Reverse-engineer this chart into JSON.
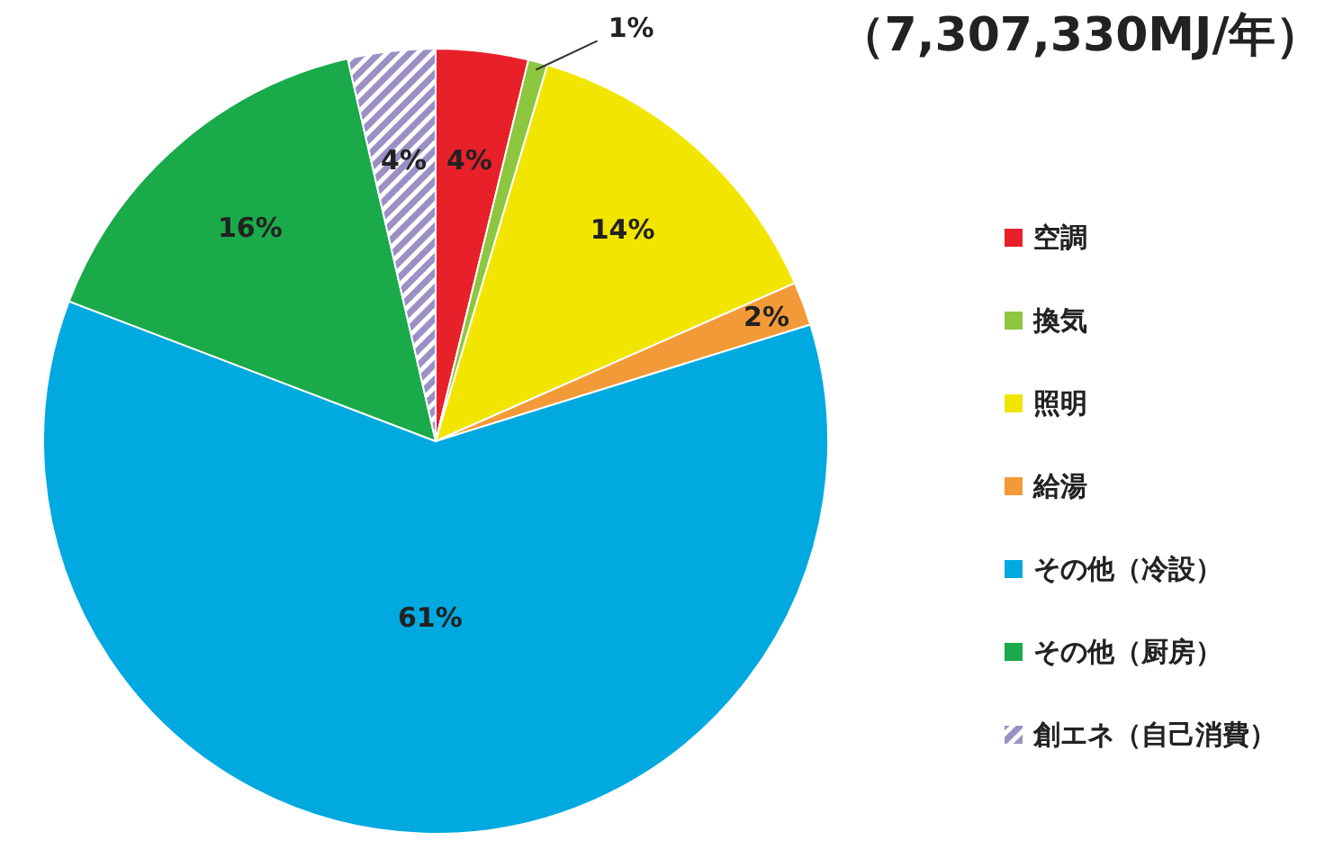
{
  "chart_data": {
    "type": "pie",
    "title": "（7,307,330MJ/年）",
    "categories": [
      "空調",
      "換気",
      "照明",
      "給湯",
      "その他（冷設）",
      "その他（厨房）",
      "創エネ（自己消費）"
    ],
    "values": [
      3.8,
      0.8,
      13.8,
      1.8,
      60.6,
      15.6,
      3.6
    ],
    "colors": [
      "#e8202a",
      "#8dc63f",
      "#f2e600",
      "#f39a38",
      "#00a9e0",
      "#1aaa4a",
      "#9b8fc4"
    ],
    "value_labels": [
      "4%",
      "1%",
      "14%",
      "2%",
      "61%",
      "16%",
      "4%"
    ],
    "legend": "right"
  }
}
